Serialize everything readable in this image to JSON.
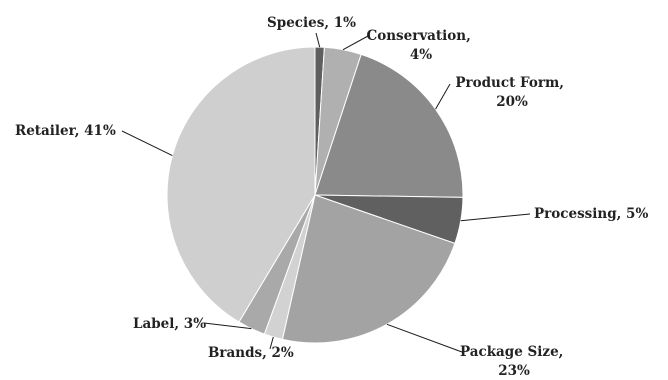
{
  "chart_data": {
    "type": "pie",
    "title": "",
    "start_angle_deg": 0,
    "direction": "clockwise",
    "legend": "none",
    "slices": [
      {
        "label": "Species",
        "value": 1,
        "display": "Species, 1%",
        "color": "#5f5f5f"
      },
      {
        "label": "Conservation",
        "value": 4,
        "display_lines": [
          "Conservation,",
          "4%"
        ],
        "color": "#b0b0b0"
      },
      {
        "label": "Product Form",
        "value": 20,
        "display_lines": [
          "Product Form,",
          "20%"
        ],
        "color": "#8a8a8a"
      },
      {
        "label": "Processing",
        "value": 5,
        "display": "Processing, 5%",
        "color": "#606060"
      },
      {
        "label": "Package Size",
        "value": 23,
        "display_lines": [
          "Package Size,",
          "23%"
        ],
        "color": "#a3a3a3"
      },
      {
        "label": "Brands",
        "value": 2,
        "display": "Brands, 2%",
        "color": "#d2d2d2"
      },
      {
        "label": "Label",
        "value": 3,
        "display": "Label, 3%",
        "color": "#a9a9a9"
      },
      {
        "label": "Retailer",
        "value": 41,
        "display": "Retailer, 41%",
        "color": "#cfcfcf"
      }
    ]
  }
}
